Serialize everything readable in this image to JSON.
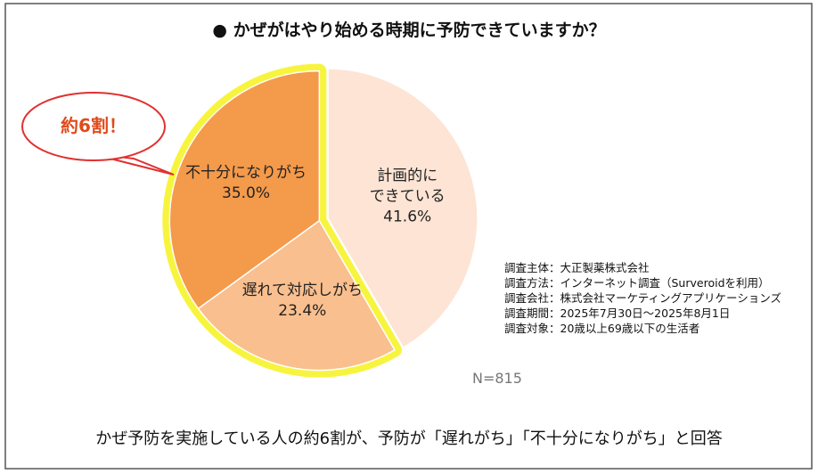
{
  "chart_data": {
    "type": "pie",
    "title": "● かぜがはやり始める時期に予防できていますか？",
    "categories": [
      "計画的に\nできている",
      "遅れて対応しがち",
      "不十分になりがち"
    ],
    "values": [
      41.6,
      23.4,
      35.0
    ],
    "value_labels": [
      "41.6%",
      "23.4%",
      "35.0%"
    ],
    "colors": [
      "#fde4d4",
      "#f9bf8e",
      "#f49a4b"
    ],
    "highlight_color": "#f7f43f",
    "callout": "約6割！",
    "sample_size": "N=815",
    "survey_info": [
      "調査主体：大正製薬株式会社",
      "調査方法：インターネット調査（Surveroidを利用）",
      "調査会社：株式会社マーケティングアプリケーションズ",
      "調査期間：2025年7月30日～2025年8月1日",
      "調査対象：20歳以上69歳以下の生活者"
    ],
    "caption": "かぜ予防を実施している人の約6割が、予防が「遅れがち」「不十分になりがち」と回答"
  }
}
